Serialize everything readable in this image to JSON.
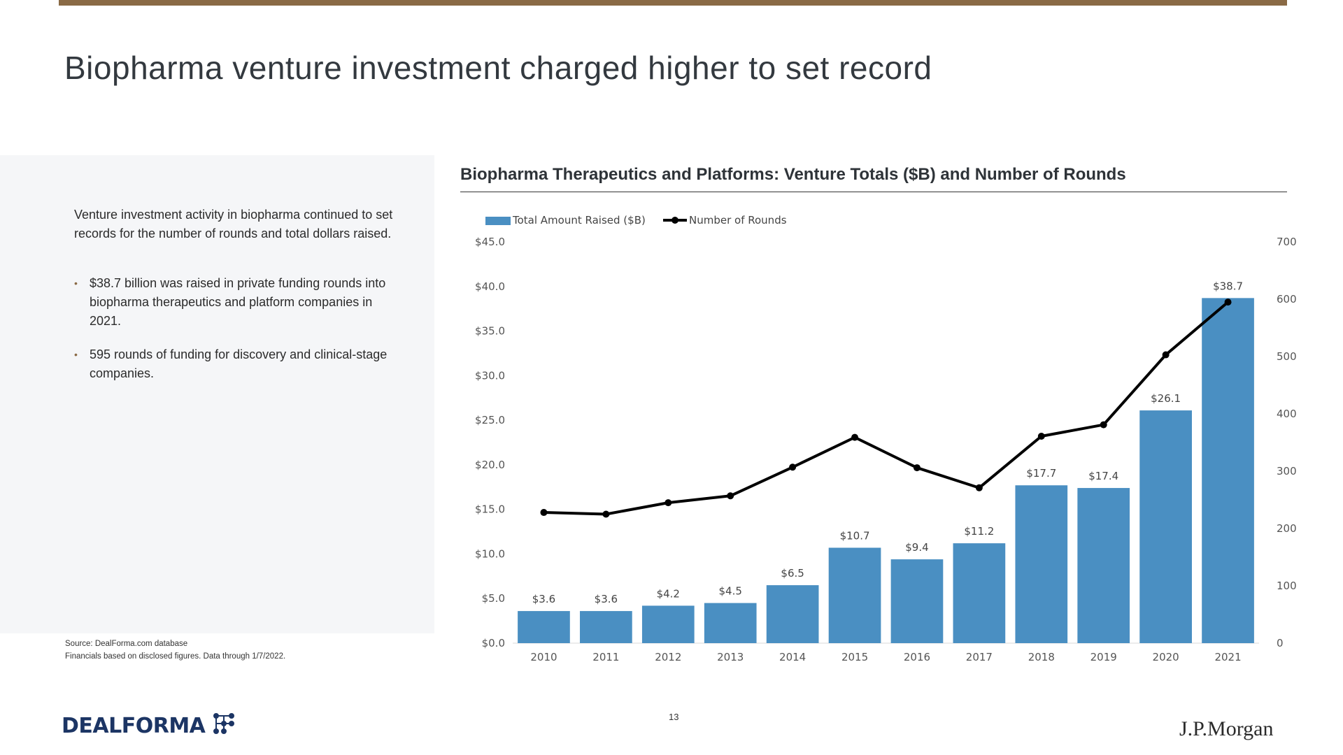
{
  "page": {
    "title": "Biopharma venture investment charged higher to set record",
    "intro": "Venture investment activity in biopharma continued to set records for the number of rounds and total dollars raised.",
    "bullets": [
      "$38.7 billion was raised in private funding rounds into biopharma therapeutics and platform companies in 2021.",
      "595 rounds of funding for discovery and clinical-stage companies."
    ],
    "source_line1": "Source: DealForma.com database",
    "source_line2": "Financials based on disclosed figures. Data through 1/7/2022.",
    "page_number": "13",
    "logo_left": "DEALFORMA",
    "logo_right": "J.P.Morgan",
    "accent_color": "#8a6a45"
  },
  "chart_data": {
    "type": "bar",
    "title": "Biopharma Therapeutics and Platforms: Venture Totals ($B) and Number of Rounds",
    "categories": [
      "2010",
      "2011",
      "2012",
      "2013",
      "2014",
      "2015",
      "2016",
      "2017",
      "2018",
      "2019",
      "2020",
      "2021"
    ],
    "series": [
      {
        "name": "Total Amount Raised ($B)",
        "type": "bar",
        "axis": "left",
        "color": "#4a8fc2",
        "values": [
          3.6,
          3.6,
          4.2,
          4.5,
          6.5,
          10.7,
          9.4,
          11.2,
          17.7,
          17.4,
          26.1,
          38.7
        ],
        "labels": [
          "$3.6",
          "$3.6",
          "$4.2",
          "$4.5",
          "$6.5",
          "$10.7",
          "$9.4",
          "$11.2",
          "$17.7",
          "$17.4",
          "$26.1",
          "$38.7"
        ]
      },
      {
        "name": "Number of Rounds",
        "type": "line",
        "axis": "right",
        "color": "#000000",
        "values": [
          228,
          225,
          245,
          257,
          307,
          359,
          306,
          271,
          361,
          381,
          503,
          595
        ]
      }
    ],
    "y_left": {
      "ylim": [
        0,
        45
      ],
      "ticks": [
        0,
        5,
        10,
        15,
        20,
        25,
        30,
        35,
        40,
        45
      ],
      "tick_labels": [
        "$0.0",
        "$5.0",
        "$10.0",
        "$15.0",
        "$20.0",
        "$25.0",
        "$30.0",
        "$35.0",
        "$40.0",
        "$45.0"
      ]
    },
    "y_right": {
      "ylim": [
        0,
        700
      ],
      "ticks": [
        0,
        100,
        200,
        300,
        400,
        500,
        600,
        700
      ],
      "tick_labels": [
        "0",
        "100",
        "200",
        "300",
        "400",
        "500",
        "600",
        "700"
      ]
    },
    "grid": false,
    "legend": "top-left"
  }
}
